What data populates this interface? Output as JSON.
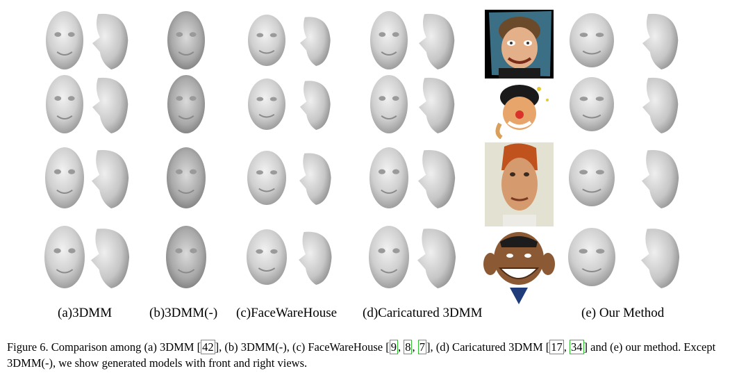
{
  "columns": [
    {
      "label": "(a)3DMM"
    },
    {
      "label": "(b)3DMM(-)"
    },
    {
      "label": "(c)FaceWareHouse"
    },
    {
      "label": "(d)Caricatured 3DMM"
    },
    {
      "label": "(e) Our Method"
    }
  ],
  "caption": {
    "prefix": "Figure 6. Comparison among (a) 3DMM [",
    "ref_a": "42",
    "part2": "], (b) 3DMM(-), (c) FaceWareHouse [",
    "ref_c1": "9",
    "sep1": ", ",
    "ref_c2": "8",
    "sep2": ", ",
    "ref_c3": "7",
    "part3": "], (d) Caricatured 3DMM [",
    "ref_d1": "17",
    "sep3": ", ",
    "ref_d2": "34",
    "part4": "] and (e) our method. Except 3DMM(-), we show generated models with front and right views."
  },
  "colors": {
    "cite_box": "#2fc22f",
    "mesh": "#c9c9c9",
    "photo_dark": "#000000"
  }
}
